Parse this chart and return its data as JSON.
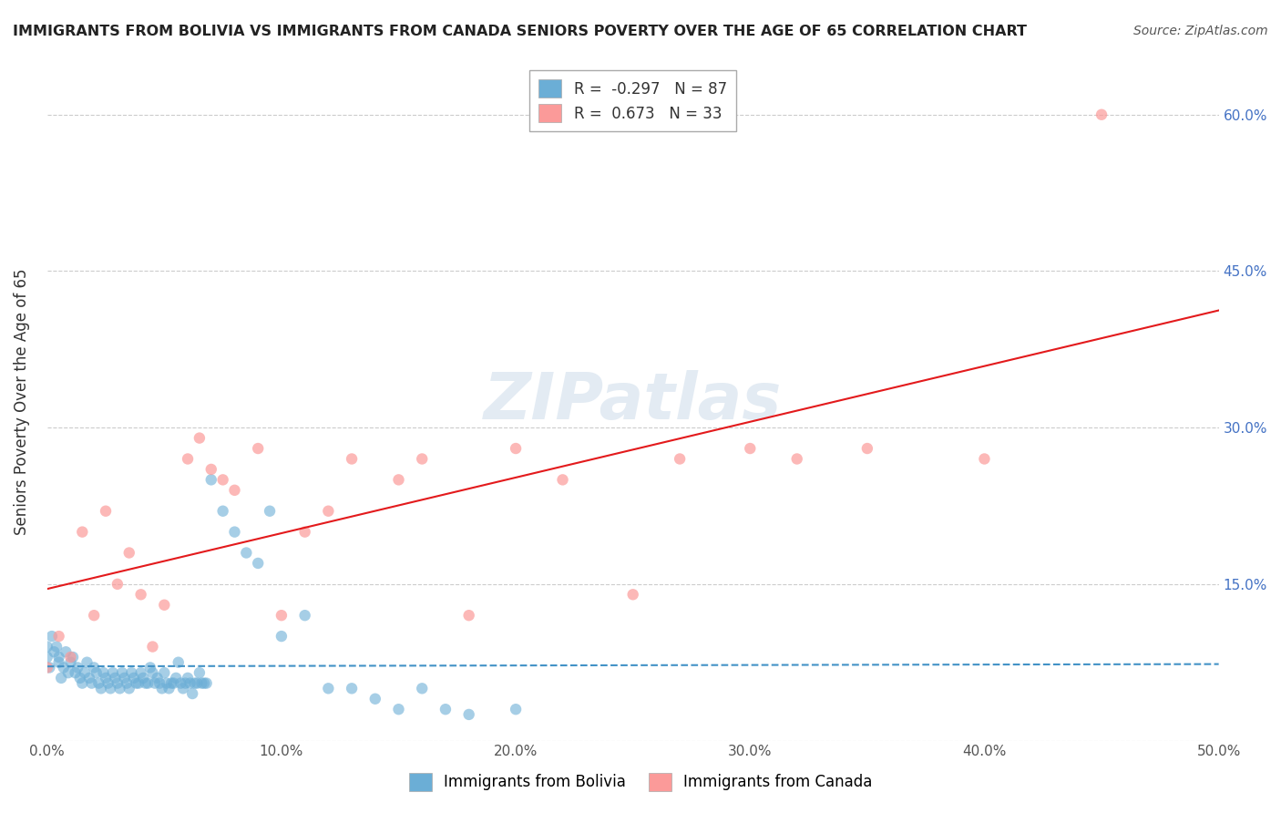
{
  "title": "IMMIGRANTS FROM BOLIVIA VS IMMIGRANTS FROM CANADA SENIORS POVERTY OVER THE AGE OF 65 CORRELATION CHART",
  "source": "Source: ZipAtlas.com",
  "xlabel": "",
  "ylabel": "Seniors Poverty Over the Age of 65",
  "xlim": [
    0.0,
    0.5
  ],
  "ylim": [
    0.0,
    0.65
  ],
  "xticks": [
    0.0,
    0.1,
    0.2,
    0.3,
    0.4,
    0.5
  ],
  "yticks": [
    0.0,
    0.15,
    0.3,
    0.45,
    0.6
  ],
  "xtick_labels": [
    "0.0%",
    "10.0%",
    "20.0%",
    "30.0%",
    "40.0%",
    "50.0%"
  ],
  "ytick_labels_right": [
    "",
    "15.0%",
    "30.0%",
    "45.0%",
    "60.0%"
  ],
  "bolivia_color": "#6baed6",
  "canada_color": "#fb9a99",
  "bolivia_R": -0.297,
  "bolivia_N": 87,
  "canada_R": 0.673,
  "canada_N": 33,
  "bolivia_line_color": "#4292c6",
  "canada_line_color": "#e31a1c",
  "watermark": "ZIPatlas",
  "background_color": "#ffffff",
  "grid_color": "#cccccc",
  "bolivia_scatter_x": [
    0.0,
    0.0,
    0.001,
    0.002,
    0.003,
    0.004,
    0.005,
    0.005,
    0.006,
    0.007,
    0.008,
    0.009,
    0.01,
    0.011,
    0.012,
    0.013,
    0.014,
    0.015,
    0.016,
    0.017,
    0.018,
    0.019,
    0.02,
    0.021,
    0.022,
    0.023,
    0.024,
    0.025,
    0.026,
    0.027,
    0.028,
    0.029,
    0.03,
    0.031,
    0.032,
    0.033,
    0.034,
    0.035,
    0.036,
    0.037,
    0.038,
    0.039,
    0.04,
    0.041,
    0.042,
    0.043,
    0.044,
    0.045,
    0.046,
    0.047,
    0.048,
    0.049,
    0.05,
    0.051,
    0.052,
    0.053,
    0.054,
    0.055,
    0.056,
    0.057,
    0.058,
    0.059,
    0.06,
    0.061,
    0.062,
    0.063,
    0.064,
    0.065,
    0.066,
    0.067,
    0.068,
    0.07,
    0.075,
    0.08,
    0.085,
    0.09,
    0.095,
    0.1,
    0.11,
    0.12,
    0.13,
    0.14,
    0.15,
    0.16,
    0.17,
    0.18,
    0.2
  ],
  "bolivia_scatter_y": [
    0.08,
    0.09,
    0.07,
    0.1,
    0.085,
    0.09,
    0.075,
    0.08,
    0.06,
    0.07,
    0.085,
    0.065,
    0.075,
    0.08,
    0.065,
    0.07,
    0.06,
    0.055,
    0.065,
    0.075,
    0.06,
    0.055,
    0.07,
    0.065,
    0.055,
    0.05,
    0.065,
    0.06,
    0.055,
    0.05,
    0.065,
    0.06,
    0.055,
    0.05,
    0.065,
    0.06,
    0.055,
    0.05,
    0.065,
    0.06,
    0.055,
    0.055,
    0.065,
    0.06,
    0.055,
    0.055,
    0.07,
    0.065,
    0.055,
    0.06,
    0.055,
    0.05,
    0.065,
    0.055,
    0.05,
    0.055,
    0.055,
    0.06,
    0.075,
    0.055,
    0.05,
    0.055,
    0.06,
    0.055,
    0.045,
    0.055,
    0.055,
    0.065,
    0.055,
    0.055,
    0.055,
    0.25,
    0.22,
    0.2,
    0.18,
    0.17,
    0.22,
    0.1,
    0.12,
    0.05,
    0.05,
    0.04,
    0.03,
    0.05,
    0.03,
    0.025,
    0.03
  ],
  "canada_scatter_x": [
    0.0,
    0.005,
    0.01,
    0.015,
    0.02,
    0.025,
    0.03,
    0.035,
    0.04,
    0.045,
    0.05,
    0.06,
    0.065,
    0.07,
    0.075,
    0.08,
    0.09,
    0.1,
    0.11,
    0.12,
    0.13,
    0.15,
    0.16,
    0.18,
    0.2,
    0.22,
    0.25,
    0.27,
    0.3,
    0.32,
    0.35,
    0.4,
    0.45
  ],
  "canada_scatter_y": [
    0.07,
    0.1,
    0.08,
    0.2,
    0.12,
    0.22,
    0.15,
    0.18,
    0.14,
    0.09,
    0.13,
    0.27,
    0.29,
    0.26,
    0.25,
    0.24,
    0.28,
    0.12,
    0.2,
    0.22,
    0.27,
    0.25,
    0.27,
    0.12,
    0.28,
    0.25,
    0.14,
    0.27,
    0.28,
    0.27,
    0.28,
    0.27,
    0.6
  ]
}
